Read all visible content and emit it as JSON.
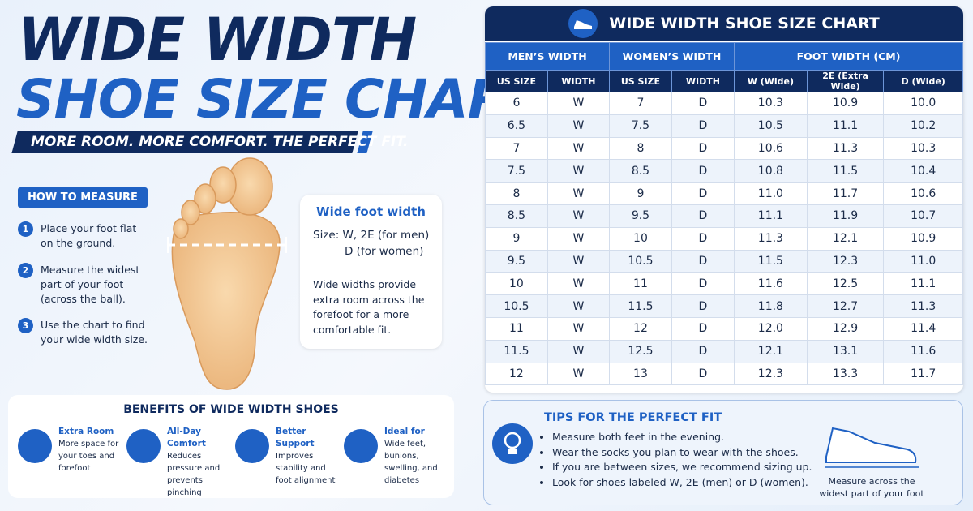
{
  "header": {
    "title_line1": "WIDE WIDTH",
    "title_line2": "SHOE SIZE CHART",
    "tagline": "MORE ROOM. MORE COMFORT. THE PERFECT FIT."
  },
  "how_to_measure": {
    "title": "HOW TO MEASURE",
    "steps": [
      {
        "number": "1",
        "text": "Place your foot flat on the ground."
      },
      {
        "number": "2",
        "text": "Measure the widest part of your foot (across the ball)."
      },
      {
        "number": "3",
        "text": "Use the chart to find your wide width size."
      }
    ]
  },
  "callout": {
    "title": "Wide foot width",
    "size_men": "Size: W, 2E (for men)",
    "size_women": "D (for women)",
    "text": "Wide widths provide extra room across the forefoot for a more comfortable fit."
  },
  "benefits": {
    "title": "BENEFITS OF WIDE WIDTH SHOES",
    "items": [
      {
        "title": "Extra Room",
        "text": "More space for your toes and forefoot"
      },
      {
        "title": "All-Day Comfort",
        "text": "Reduces pressure and prevents pinching"
      },
      {
        "title": "Better Support",
        "text": "Improves stability and foot alignment"
      },
      {
        "title": "Ideal for",
        "text": "Wide feet, bunions, swelling, and diabetes"
      }
    ]
  },
  "table": {
    "title": "WIDE WIDTH SHOE SIZE CHART",
    "groups": [
      "MEN’S WIDTH",
      "WOMEN’S WIDTH",
      "FOOT WIDTH (CM)"
    ],
    "columns": [
      "US SIZE",
      "WIDTH",
      "US SIZE",
      "WIDTH",
      "W (Wide)",
      "2E (Extra Wide)",
      "D (Wide)"
    ],
    "rows": [
      [
        "6",
        "W",
        "7",
        "D",
        "10.3",
        "10.9",
        "10.0"
      ],
      [
        "6.5",
        "W",
        "7.5",
        "D",
        "10.5",
        "11.1",
        "10.2"
      ],
      [
        "7",
        "W",
        "8",
        "D",
        "10.6",
        "11.3",
        "10.3"
      ],
      [
        "7.5",
        "W",
        "8.5",
        "D",
        "10.8",
        "11.5",
        "10.4"
      ],
      [
        "8",
        "W",
        "9",
        "D",
        "11.0",
        "11.7",
        "10.6"
      ],
      [
        "8.5",
        "W",
        "9.5",
        "D",
        "11.1",
        "11.9",
        "10.7"
      ],
      [
        "9",
        "W",
        "10",
        "D",
        "11.3",
        "12.1",
        "10.9"
      ],
      [
        "9.5",
        "W",
        "10.5",
        "D",
        "11.5",
        "12.3",
        "11.0"
      ],
      [
        "10",
        "W",
        "11",
        "D",
        "11.6",
        "12.5",
        "11.1"
      ],
      [
        "10.5",
        "W",
        "11.5",
        "D",
        "11.8",
        "12.7",
        "11.3"
      ],
      [
        "11",
        "W",
        "12",
        "D",
        "12.0",
        "12.9",
        "11.4"
      ],
      [
        "11.5",
        "W",
        "12.5",
        "D",
        "12.1",
        "13.1",
        "11.6"
      ],
      [
        "12",
        "W",
        "13",
        "D",
        "12.3",
        "13.3",
        "11.7"
      ]
    ]
  },
  "tips": {
    "title": "TIPS FOR THE PERFECT FIT",
    "items": [
      "Measure both feet in the evening.",
      "Wear the socks you plan to wear with the shoes.",
      "If you are between sizes, we recommend sizing up.",
      "Look for shoes labeled W, 2E (men) or D (women)."
    ],
    "shoe_caption": "Measure across the widest part of your foot"
  }
}
